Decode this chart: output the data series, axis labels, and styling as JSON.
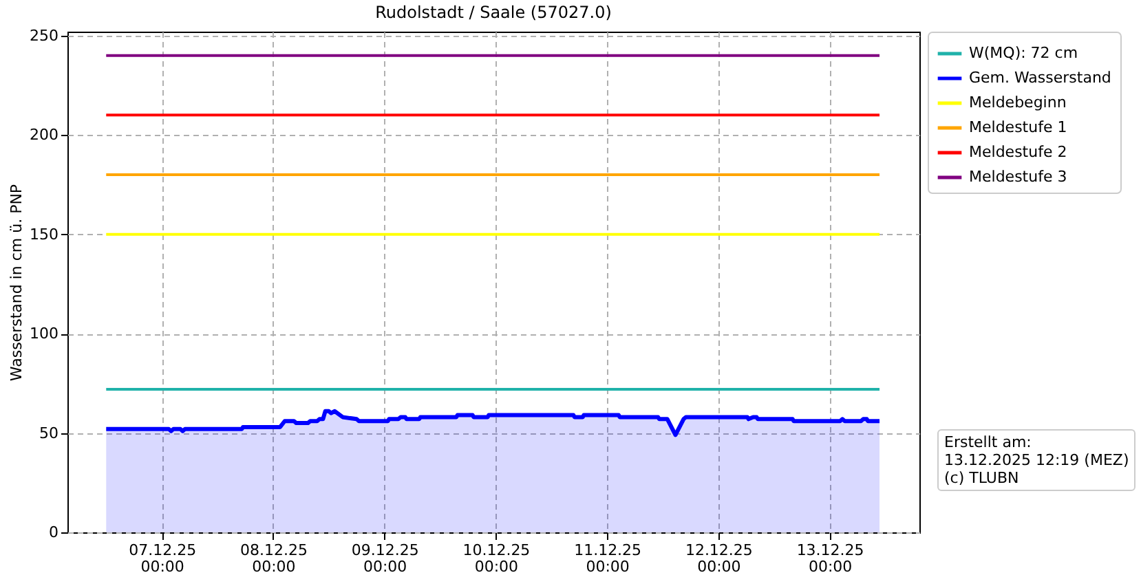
{
  "chart_data": {
    "type": "line",
    "title": "Rudolstadt / Saale (57027.0)",
    "ylabel": "Wasserstand in cm ü. PNP",
    "xlim": [
      "2025-12-06T03:39",
      "2025-12-13T19:21"
    ],
    "ylim": [
      0,
      252
    ],
    "xticks": [
      {
        "value": "2025-12-07T00:00",
        "label": "07.12.25\n00:00"
      },
      {
        "value": "2025-12-08T00:00",
        "label": "08.12.25\n00:00"
      },
      {
        "value": "2025-12-09T00:00",
        "label": "09.12.25\n00:00"
      },
      {
        "value": "2025-12-10T00:00",
        "label": "10.12.25\n00:00"
      },
      {
        "value": "2025-12-11T00:00",
        "label": "11.12.25\n00:00"
      },
      {
        "value": "2025-12-12T00:00",
        "label": "12.12.25\n00:00"
      },
      {
        "value": "2025-12-13T00:00",
        "label": "13.12.25\n00:00"
      }
    ],
    "yticks": [
      0,
      50,
      100,
      150,
      200,
      250
    ],
    "grid": true,
    "legend": "top right",
    "line_style": "solid",
    "series": [
      {
        "name": "W(MQ): 72 cm",
        "color": "#20b2aa",
        "x": [
          "2025-12-06T12:00",
          "2025-12-13T10:45"
        ],
        "values": [
          72,
          72
        ]
      },
      {
        "name": "Gem. Wasserstand",
        "type": "area",
        "color": "#0000ff",
        "x": [
          "2025-12-06T12:00",
          "2025-12-07T01:30",
          "2025-12-07T02:00",
          "2025-12-07T02:30",
          "2025-12-07T04:00",
          "2025-12-07T04:30",
          "2025-12-07T05:00",
          "2025-12-07T17:15",
          "2025-12-07T17:30",
          "2025-12-08T01:30",
          "2025-12-08T02:30",
          "2025-12-08T04:30",
          "2025-12-08T05:00",
          "2025-12-08T07:30",
          "2025-12-08T08:00",
          "2025-12-08T09:30",
          "2025-12-08T10:00",
          "2025-12-08T10:45",
          "2025-12-08T11:15",
          "2025-12-08T12:00",
          "2025-12-08T12:30",
          "2025-12-08T13:15",
          "2025-12-08T15:00",
          "2025-12-08T18:00",
          "2025-12-08T18:30",
          "2025-12-09T00:45",
          "2025-12-09T01:00",
          "2025-12-09T03:00",
          "2025-12-09T03:30",
          "2025-12-09T04:30",
          "2025-12-09T04:45",
          "2025-12-09T07:30",
          "2025-12-09T07:45",
          "2025-12-09T15:30",
          "2025-12-09T15:45",
          "2025-12-09T19:00",
          "2025-12-09T19:15",
          "2025-12-09T22:15",
          "2025-12-09T22:30",
          "2025-12-10T16:45",
          "2025-12-10T17:00",
          "2025-12-10T18:45",
          "2025-12-10T19:00",
          "2025-12-11T02:30",
          "2025-12-11T02:45",
          "2025-12-11T11:00",
          "2025-12-11T11:15",
          "2025-12-11T13:00",
          "2025-12-11T14:45",
          "2025-12-11T16:30",
          "2025-12-11T17:00",
          "2025-12-12T06:15",
          "2025-12-12T06:30",
          "2025-12-12T07:30",
          "2025-12-12T08:15",
          "2025-12-12T08:30",
          "2025-12-12T16:00",
          "2025-12-12T16:15",
          "2025-12-13T02:15",
          "2025-12-13T02:45",
          "2025-12-13T03:15",
          "2025-12-13T06:45",
          "2025-12-13T07:15",
          "2025-12-13T08:00",
          "2025-12-13T08:15",
          "2025-12-13T10:45"
        ],
        "values": [
          52,
          52,
          51,
          52,
          52,
          51,
          52,
          52,
          53,
          53,
          56,
          56,
          55,
          55,
          56,
          56,
          57,
          57,
          61,
          61,
          60,
          61,
          58,
          57,
          56,
          56,
          57,
          57,
          58,
          58,
          57,
          57,
          58,
          58,
          59,
          59,
          58,
          58,
          59,
          59,
          58,
          58,
          59,
          59,
          58,
          58,
          57,
          57,
          49,
          57,
          58,
          58,
          57,
          58,
          58,
          57,
          57,
          56,
          56,
          57,
          56,
          56,
          57,
          57,
          56,
          56
        ]
      },
      {
        "name": "Meldebeginn",
        "color": "#ffff00",
        "x": [
          "2025-12-06T12:00",
          "2025-12-13T10:45"
        ],
        "values": [
          150,
          150
        ]
      },
      {
        "name": "Meldestufe 1",
        "color": "#ffa500",
        "x": [
          "2025-12-06T12:00",
          "2025-12-13T10:45"
        ],
        "values": [
          180,
          180
        ]
      },
      {
        "name": "Meldestufe 2",
        "color": "#ff0000",
        "x": [
          "2025-12-06T12:00",
          "2025-12-13T10:45"
        ],
        "values": [
          210,
          210
        ]
      },
      {
        "name": "Meldestufe 3",
        "color": "#800080",
        "x": [
          "2025-12-06T12:00",
          "2025-12-13T10:45"
        ],
        "values": [
          240,
          240
        ]
      }
    ],
    "annotations": [
      "Erstellt am:\n13.12.2025 12:19 (MEZ)\n(c) TLUBN"
    ]
  }
}
